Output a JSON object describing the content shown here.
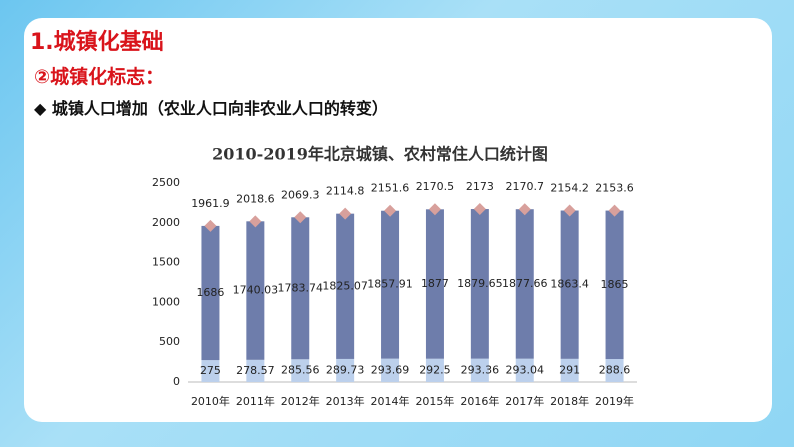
{
  "slide": {
    "heading": "1.城镇化基础",
    "subheading": "②城镇化标志：",
    "bullet": "◆ 城镇人口增加（农业人口向非农业人口的转变）"
  },
  "chart_data": {
    "type": "bar",
    "stacked": true,
    "title": "2010-2019年北京城镇、农村常住人口统计图",
    "categories": [
      "2010年",
      "2011年",
      "2012年",
      "2013年",
      "2014年",
      "2015年",
      "2016年",
      "2017年",
      "2018年",
      "2019年"
    ],
    "series": [
      {
        "color": "#bcd0ec",
        "values": [
          275,
          278.57,
          285.56,
          289.73,
          293.69,
          292.5,
          293.36,
          293.04,
          291,
          288.6
        ]
      },
      {
        "color": "#6e7dab",
        "values": [
          1686,
          1740.03,
          1783.74,
          1825.07,
          1857.91,
          1877,
          1879.65,
          1877.66,
          1863.4,
          1865
        ]
      },
      {
        "type": "scatter",
        "marker": "diamond",
        "color": "#d8a09c",
        "values": [
          1961.9,
          2018.6,
          2069.3,
          2114.8,
          2151.6,
          2170.5,
          2173,
          2170.7,
          2154.2,
          2153.6
        ]
      }
    ],
    "ylim": [
      0,
      2500
    ],
    "yticks": [
      0,
      500,
      1000,
      1500,
      2000,
      2500
    ],
    "grid": false
  }
}
